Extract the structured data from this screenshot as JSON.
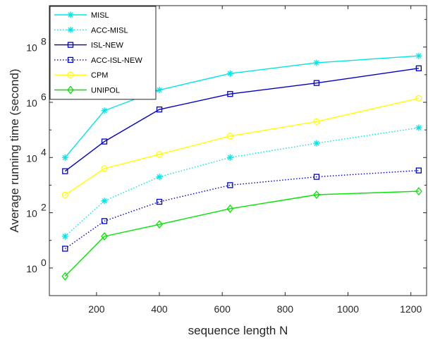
{
  "chart_data": {
    "type": "line",
    "title": "",
    "xlabel": "sequence length N",
    "ylabel": "Average running time (second)",
    "xlim": [
      50,
      1250
    ],
    "ylim_log10": [
      -1,
      9.5
    ],
    "yscale": "log",
    "grid": false,
    "legend_placement": "top-left",
    "x_ticks": [
      200,
      400,
      600,
      800,
      1000,
      1200
    ],
    "x_tick_labels": [
      "200",
      "400",
      "600",
      "800",
      "1000",
      "1200"
    ],
    "y_tick_exponents": [
      0,
      2,
      4,
      6,
      8
    ],
    "y_tick_labels": [
      "10",
      "10",
      "10",
      "10",
      "10"
    ],
    "y_tick_label_exponents": [
      "0",
      "2",
      "4",
      "6",
      "8"
    ],
    "x": [
      100,
      225,
      400,
      625,
      900,
      1225
    ],
    "series": [
      {
        "name": "MISL",
        "color": "#00e5e5",
        "dash": "solid",
        "marker": "star",
        "values": [
          10000,
          500000,
          2800000,
          11000000,
          27000000,
          48000000
        ]
      },
      {
        "name": "ACC-MISL",
        "color": "#00e5e5",
        "dash": "dotted",
        "marker": "star",
        "values": [
          14,
          270,
          2000,
          10000,
          33000,
          120000
        ]
      },
      {
        "name": "ISL-NEW",
        "color": "#0000cc",
        "dash": "solid",
        "marker": "square",
        "values": [
          3200,
          38000,
          550000,
          2000000,
          5000000,
          17000000
        ]
      },
      {
        "name": "ACC-ISL-NEW",
        "color": "#0000cc",
        "dash": "dotted",
        "marker": "square",
        "values": [
          5,
          50,
          250,
          1000,
          2000,
          3400
        ]
      },
      {
        "name": "CPM",
        "color": "#ffff00",
        "dash": "solid",
        "marker": "circle",
        "values": [
          440,
          4000,
          13000,
          60000,
          200000,
          1400000
        ]
      },
      {
        "name": "UNIPOL",
        "color": "#00e600",
        "dash": "solid",
        "marker": "diamond",
        "values": [
          0.5,
          14,
          38,
          140,
          450,
          600
        ]
      }
    ]
  }
}
